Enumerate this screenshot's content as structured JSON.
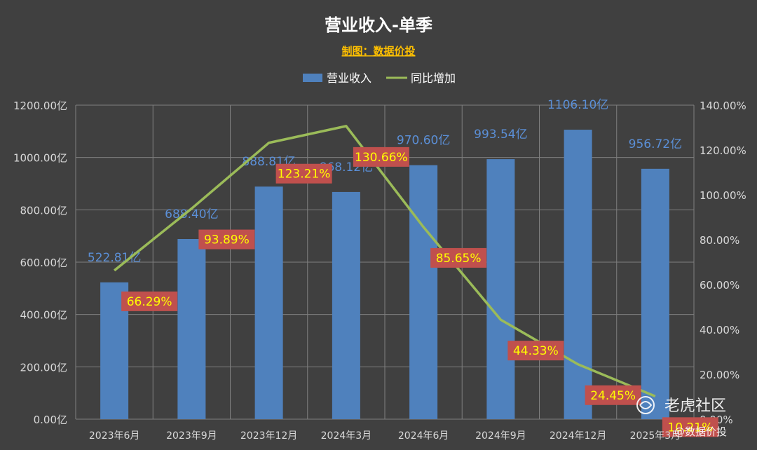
{
  "chart_data": {
    "type": "bar",
    "title": "营业收入-单季",
    "subtitle": "制图：数据价投",
    "categories": [
      "2023年6月",
      "2023年9月",
      "2023年12月",
      "2024年3月",
      "2024年6月",
      "2024年9月",
      "2024年12月",
      "2025年3月"
    ],
    "series": [
      {
        "name": "营业收入",
        "type": "bar",
        "axis": "left",
        "color": "#4f81bd",
        "values": [
          522.81,
          688.4,
          888.81,
          868.12,
          970.6,
          993.54,
          1106.1,
          956.72
        ],
        "labels": [
          "522.81亿",
          "688.40亿",
          "888.81亿",
          "868.12亿",
          "970.60亿",
          "993.54亿",
          "1106.10亿",
          "956.72亿"
        ]
      },
      {
        "name": "同比增加",
        "type": "line",
        "axis": "right",
        "color": "#9bbb59",
        "values": [
          66.29,
          93.89,
          123.21,
          130.66,
          85.65,
          44.33,
          24.45,
          10.21
        ],
        "labels": [
          "66.29%",
          "93.89%",
          "123.21%",
          "130.66%",
          "85.65%",
          "44.33%",
          "24.45%",
          "10.21%"
        ]
      }
    ],
    "ylim_left": [
      0,
      1200
    ],
    "ylim_right": [
      0,
      140
    ],
    "yticks_left": [
      "0.00亿",
      "200.00亿",
      "400.00亿",
      "600.00亿",
      "800.00亿",
      "1000.00亿",
      "1200.00亿"
    ],
    "yticks_right": [
      "0.00%",
      "20.00%",
      "40.00%",
      "60.00%",
      "80.00%",
      "100.00%",
      "120.00%",
      "140.00%"
    ],
    "legend_position": "top-center",
    "grid": true
  },
  "watermark": {
    "main": "老虎社区",
    "sub": "@数据价投",
    "icon": "tiger-logo-icon"
  }
}
